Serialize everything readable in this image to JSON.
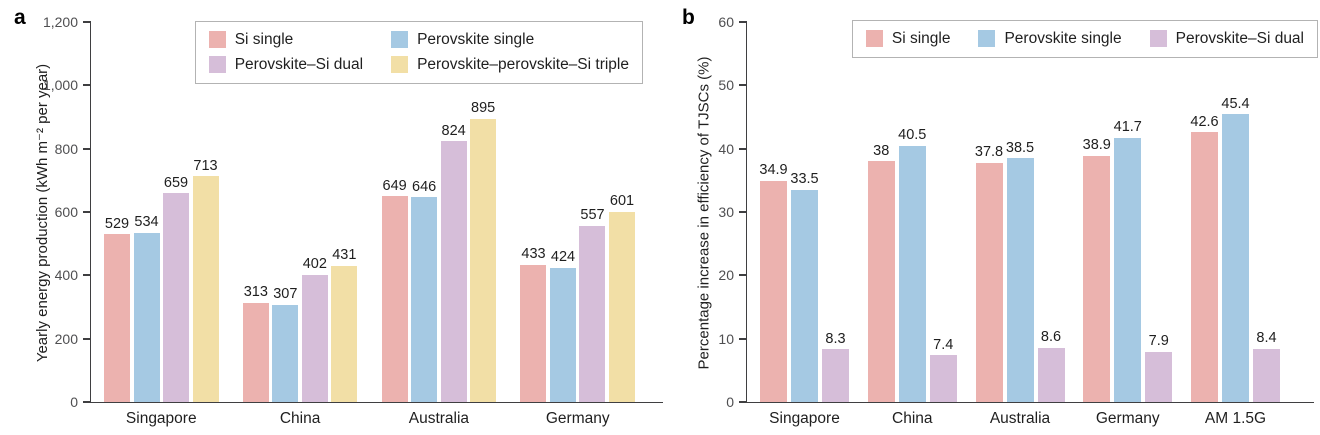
{
  "style": {
    "background": "#ffffff",
    "axis_color": "#3f3f41",
    "tick_label_color": "#4f4f51",
    "text_color": "#1f1f1f",
    "legend_border_color": "#b3b3b3"
  },
  "chart_data": [
    {
      "type": "bar",
      "panel_label": "a",
      "title": "",
      "xlabel": "",
      "ylabel": "Yearly energy production (kWh m⁻² per year)",
      "ylim": [
        0,
        1200
      ],
      "grid": false,
      "legend_position": "top-right",
      "yticks": [
        {
          "v": 0,
          "label": "0"
        },
        {
          "v": 200,
          "label": "200"
        },
        {
          "v": 400,
          "label": "400"
        },
        {
          "v": 600,
          "label": "600"
        },
        {
          "v": 800,
          "label": "800"
        },
        {
          "v": 1000,
          "label": "1,000"
        },
        {
          "v": 1200,
          "label": "1,200"
        }
      ],
      "categories": [
        "Singapore",
        "China",
        "Australia",
        "Germany"
      ],
      "series": [
        {
          "name": "Si single",
          "color": "#ECB2AF",
          "values": [
            529,
            313,
            649,
            433
          ]
        },
        {
          "name": "Perovskite single",
          "color": "#A5C9E3",
          "values": [
            534,
            307,
            646,
            424
          ]
        },
        {
          "name": "Perovskite–Si dual",
          "color": "#D6BED9",
          "values": [
            659,
            402,
            824,
            557
          ]
        },
        {
          "name": "Perovskite–perovskite–Si triple",
          "color": "#F2DFA6",
          "values": [
            713,
            431,
            895,
            601
          ]
        }
      ]
    },
    {
      "type": "bar",
      "panel_label": "b",
      "title": "",
      "xlabel": "",
      "ylabel": "Percentage increase in efficiency of TJSCs (%)",
      "ylim": [
        0,
        60
      ],
      "grid": false,
      "legend_position": "top-right",
      "yticks": [
        {
          "v": 0,
          "label": "0"
        },
        {
          "v": 10,
          "label": "10"
        },
        {
          "v": 20,
          "label": "20"
        },
        {
          "v": 30,
          "label": "30"
        },
        {
          "v": 40,
          "label": "40"
        },
        {
          "v": 50,
          "label": "50"
        },
        {
          "v": 60,
          "label": "60"
        }
      ],
      "categories": [
        "Singapore",
        "China",
        "Australia",
        "Germany",
        "AM 1.5G"
      ],
      "series": [
        {
          "name": "Si single",
          "color": "#ECB2AF",
          "values": [
            34.9,
            38,
            37.8,
            38.9,
            42.6
          ]
        },
        {
          "name": "Perovskite single",
          "color": "#A5C9E3",
          "values": [
            33.5,
            40.5,
            38.5,
            41.7,
            45.4
          ]
        },
        {
          "name": "Perovskite–Si dual",
          "color": "#D6BED9",
          "values": [
            8.3,
            7.4,
            8.6,
            7.9,
            8.4
          ]
        }
      ]
    }
  ]
}
